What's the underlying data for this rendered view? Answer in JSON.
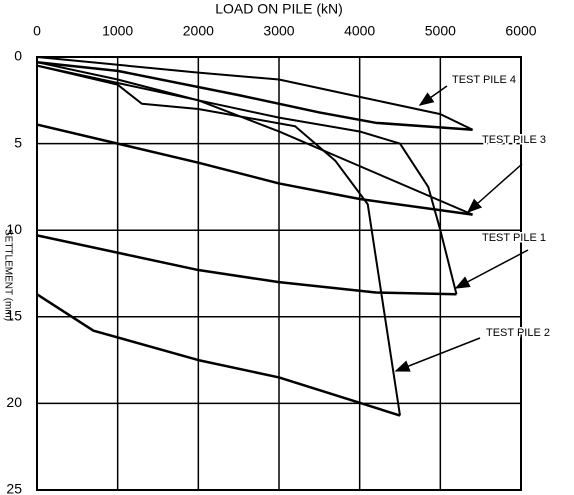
{
  "chart_data": {
    "type": "line",
    "title": "LOAD ON PILE (kN)",
    "y_label": "SETTLEMENT (mm)",
    "xlim": [
      0,
      6000
    ],
    "xticks": [
      0,
      1000,
      2000,
      3000,
      4000,
      5000,
      6000
    ],
    "ylim": [
      0,
      25
    ],
    "yticks": [
      0,
      5,
      10,
      15,
      20,
      25
    ],
    "y_inverted": true,
    "grid": true,
    "series": [
      {
        "color": "#000000",
        "x": [
          0,
          2000,
          3000,
          4000,
          5000,
          5400
        ],
        "values": [
          0,
          0.9,
          1.3,
          2.3,
          3.3,
          4.2
        ]
      },
      {
        "color": "#000000",
        "x": [
          5400,
          4200,
          3500,
          2500,
          1000,
          0
        ],
        "values": [
          4.2,
          3.8,
          3.2,
          2.2,
          0.8,
          0.3
        ]
      },
      {
        "color": "#000000",
        "x": [
          0,
          1000,
          2000,
          3000,
          4000,
          5400
        ],
        "values": [
          0.3,
          1.3,
          2.5,
          4.3,
          6.3,
          9.1
        ]
      },
      {
        "color": "#000000",
        "x": [
          5400,
          4000,
          3000,
          2000,
          0
        ],
        "values": [
          9.1,
          8.2,
          7.3,
          6.1,
          3.9
        ]
      },
      {
        "color": "#000000",
        "x": [
          0,
          1000,
          2000,
          3000,
          4000,
          4500,
          4850,
          5000,
          5200
        ],
        "values": [
          0.5,
          1.5,
          2.5,
          3.5,
          4.3,
          5,
          7.5,
          10,
          13.7
        ]
      },
      {
        "color": "#000000",
        "x": [
          5200,
          4200,
          3000,
          2000,
          0
        ],
        "values": [
          13.7,
          13.6,
          13,
          12.3,
          10.3
        ]
      },
      {
        "color": "#000000",
        "x": [
          0,
          1000,
          1300,
          2000,
          3200,
          3700,
          4100,
          4500
        ],
        "values": [
          0.5,
          1.6,
          2.7,
          3,
          4,
          6,
          8.5,
          20.7
        ]
      },
      {
        "color": "#000000",
        "x": [
          4500,
          3000,
          2000,
          700,
          0
        ],
        "values": [
          20.7,
          18.5,
          17.5,
          15.8,
          13.7
        ]
      }
    ],
    "annotations": [
      "TEST PILE 4",
      "TEST PILE 3",
      "TEST PILE 1",
      "TEST PILE 2"
    ]
  }
}
